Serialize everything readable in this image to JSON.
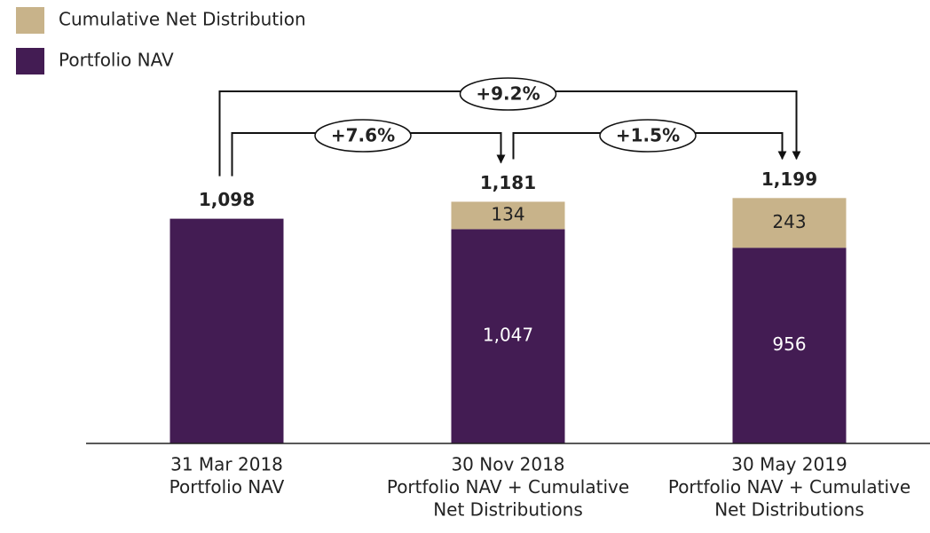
{
  "chart_data": {
    "type": "stacked_bar",
    "categories": [
      [
        "31 Mar 2018",
        "Portfolio NAV"
      ],
      [
        "30 Nov 2018",
        "Portfolio NAV + Cumulative",
        "Net Distributions"
      ],
      [
        "30 May 2019",
        "Portfolio NAV + Cumulative",
        "Net Distributions"
      ]
    ],
    "series": [
      {
        "name": "Portfolio NAV",
        "color": "#431c53",
        "label_color": "#ffffff",
        "values": [
          1098,
          1047,
          956
        ],
        "value_labels": [
          null,
          "1,047",
          "956"
        ]
      },
      {
        "name": "Cumulative Net Distribution",
        "color": "#c8b38a",
        "label_color": "#222222",
        "values": [
          null,
          134,
          243
        ],
        "value_labels": [
          null,
          "134",
          "243"
        ]
      }
    ],
    "totals": [
      1098,
      1181,
      1199
    ],
    "total_labels": [
      "1,098",
      "1,181",
      "1,199"
    ],
    "changes": [
      {
        "from": 0,
        "to": 1,
        "value": 7.6,
        "label": "+7.6%"
      },
      {
        "from": 1,
        "to": 2,
        "value": 1.5,
        "label": "+1.5%"
      },
      {
        "from": 0,
        "to": 2,
        "value": 9.2,
        "label": "+9.2%"
      }
    ],
    "ylim": [
      0,
      1300
    ]
  }
}
